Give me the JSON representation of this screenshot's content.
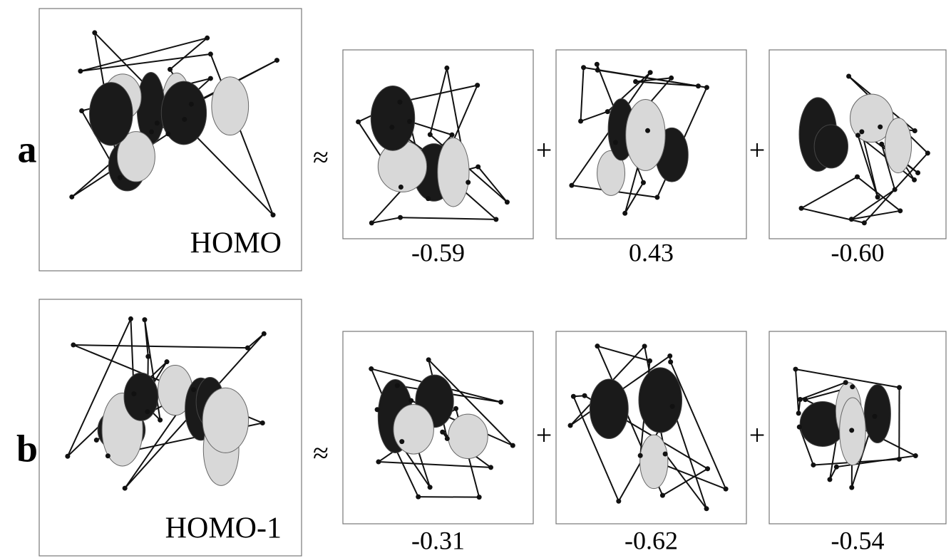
{
  "rows": [
    {
      "label": "a",
      "orbital": "HOMO",
      "approx": "≈",
      "plus": "+",
      "coefficients": [
        "-0.59",
        "0.43",
        "-0.60"
      ]
    },
    {
      "label": "b",
      "orbital": "HOMO-1",
      "approx": "≈",
      "plus": "+",
      "coefficients": [
        "-0.31",
        "-0.62",
        "-0.54"
      ]
    }
  ]
}
